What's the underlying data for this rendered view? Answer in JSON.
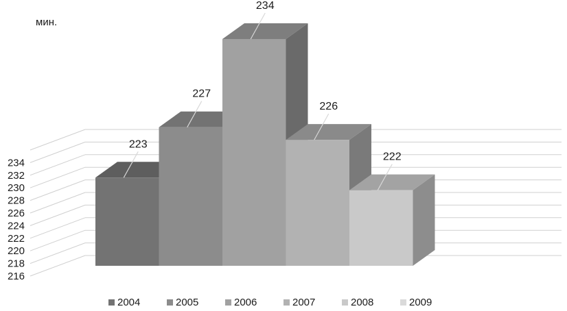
{
  "chart_data": {
    "type": "bar",
    "three_d": true,
    "unit_label": "мин.",
    "ylim": [
      216,
      236
    ],
    "y_ticks": [
      216,
      218,
      220,
      222,
      224,
      226,
      228,
      230,
      232,
      234
    ],
    "grid": true,
    "legend_position": "bottom",
    "series": [
      {
        "name": "2004",
        "value": 223,
        "label": "223",
        "colors": {
          "front": "#737373",
          "top": "#5e5e5e",
          "side": "#5e5e5e"
        }
      },
      {
        "name": "2005",
        "value": 227,
        "label": "227",
        "colors": {
          "front": "#8c8c8c",
          "top": "#737373",
          "side": "#737373"
        }
      },
      {
        "name": "2006",
        "value": 234,
        "label": "234",
        "colors": {
          "front": "#a1a1a1",
          "top": "#7e7e7e",
          "side": "#6a6a6a"
        }
      },
      {
        "name": "2007",
        "value": 226,
        "label": "226",
        "colors": {
          "front": "#b2b2b2",
          "top": "#8a8a8a",
          "side": "#7a7a7a"
        }
      },
      {
        "name": "2008",
        "value": 222,
        "label": "222",
        "colors": {
          "front": "#c9c9c9",
          "top": "#a3a3a3",
          "side": "#8d8d8d"
        }
      },
      {
        "name": "2009",
        "value": null,
        "label": "",
        "colors": {
          "front": "#dadada",
          "top": "#dadada",
          "side": "#dadada"
        }
      }
    ]
  }
}
